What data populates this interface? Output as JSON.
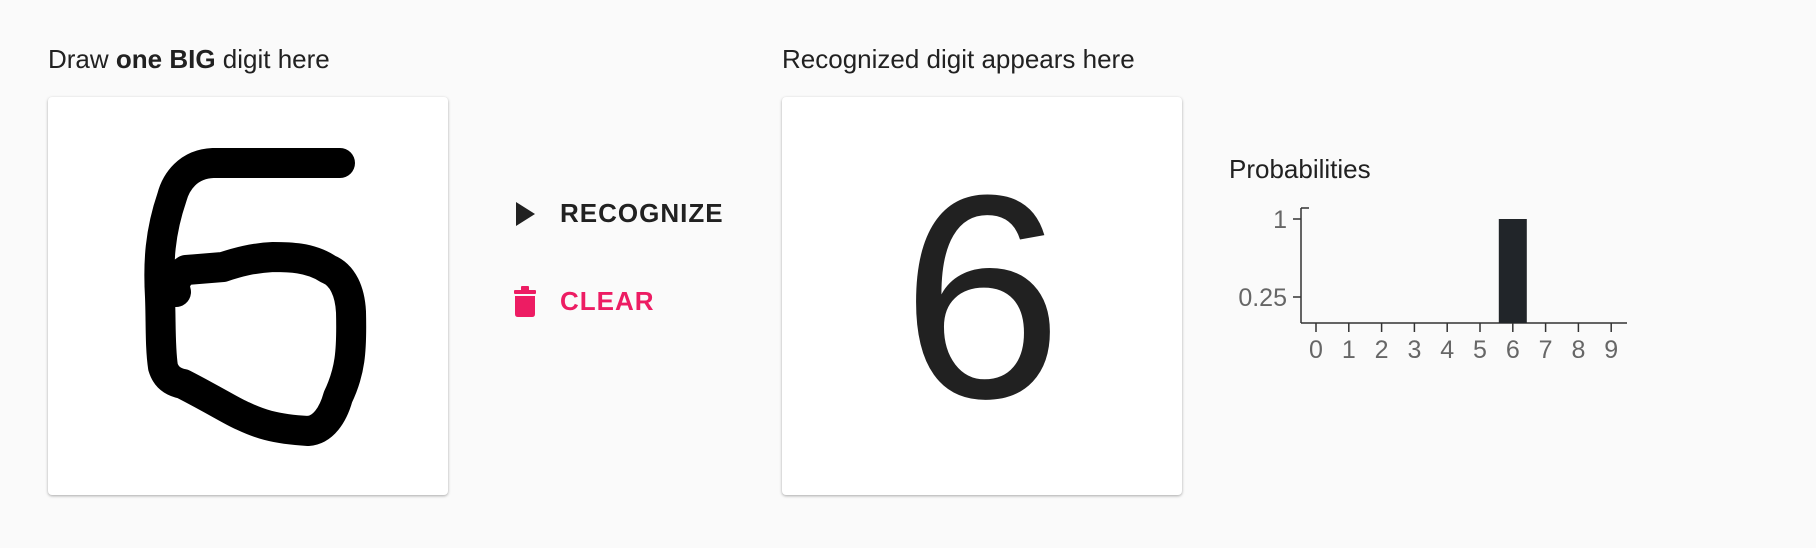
{
  "draw_panel": {
    "heading_prefix": "Draw ",
    "heading_bold": "one BIG",
    "heading_suffix": " digit here",
    "stroke_color": "#000000"
  },
  "actions": {
    "recognize_label": "RECOGNIZE",
    "recognize_icon": "play-arrow-icon",
    "recognize_color": "#212121",
    "clear_label": "CLEAR",
    "clear_icon": "trash-icon",
    "clear_color": "#ed1c63"
  },
  "result_panel": {
    "heading": "Recognized digit appears here",
    "digit": "6"
  },
  "chart_data": {
    "type": "bar",
    "title": "Probabilities",
    "categories": [
      "0",
      "1",
      "2",
      "3",
      "4",
      "5",
      "6",
      "7",
      "8",
      "9"
    ],
    "values": [
      0,
      0,
      0,
      0,
      0,
      0,
      1,
      0,
      0,
      0
    ],
    "yticks": [
      1,
      0.25
    ],
    "ytick_labels": [
      "1",
      "0.25"
    ],
    "ylim": [
      0,
      1
    ],
    "bar_color": "#212529",
    "grid": false
  }
}
